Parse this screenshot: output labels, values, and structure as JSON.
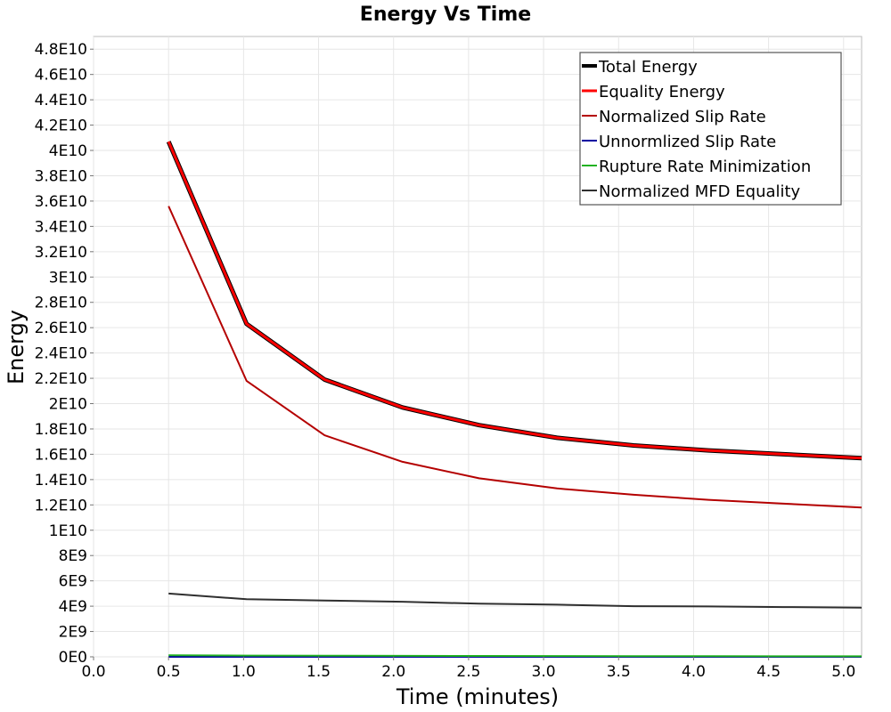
{
  "chart_data": {
    "type": "line",
    "title": "Energy Vs Time",
    "xlabel": "Time (minutes)",
    "ylabel": "Energy",
    "xlim": [
      0.0,
      5.12
    ],
    "ylim": [
      0,
      49000000000.0
    ],
    "x_ticks": [
      0.0,
      0.5,
      1.0,
      1.5,
      2.0,
      2.5,
      3.0,
      3.5,
      4.0,
      4.5,
      5.0
    ],
    "x_tick_labels": [
      "0.0",
      "0.5",
      "1.0",
      "1.5",
      "2.0",
      "2.5",
      "3.0",
      "3.5",
      "4.0",
      "4.5",
      "5.0"
    ],
    "y_ticks": [
      0,
      2000000000.0,
      4000000000.0,
      6000000000.0,
      8000000000.0,
      10000000000.0,
      12000000000.0,
      14000000000.0,
      16000000000.0,
      18000000000.0,
      20000000000.0,
      22000000000.0,
      24000000000.0,
      26000000000.0,
      28000000000.0,
      30000000000.0,
      32000000000.0,
      34000000000.0,
      36000000000.0,
      38000000000.0,
      40000000000.0,
      42000000000.0,
      44000000000.0,
      46000000000.0,
      48000000000.0
    ],
    "y_tick_labels": [
      "0E0",
      "2E9",
      "4E9",
      "6E9",
      "8E9",
      "1E10",
      "1.2E10",
      "1.4E10",
      "1.6E10",
      "1.8E10",
      "2E10",
      "2.2E10",
      "2.4E10",
      "2.6E10",
      "2.8E10",
      "3E10",
      "3.2E10",
      "3.4E10",
      "3.6E10",
      "3.8E10",
      "4E10",
      "4.2E10",
      "4.4E10",
      "4.6E10",
      "4.8E10"
    ],
    "grid": true,
    "legend_position": "top-right",
    "x": [
      0.5,
      1.02,
      1.54,
      2.06,
      2.57,
      3.09,
      3.6,
      4.1,
      4.6,
      5.12
    ],
    "series": [
      {
        "name": "Total Energy",
        "color": "#000000",
        "values": [
          40700000000.0,
          26300000000.0,
          21900000000.0,
          19700000000.0,
          18300000000.0,
          17300000000.0,
          16700000000.0,
          16300000000.0,
          16000000000.0,
          15700000000.0
        ]
      },
      {
        "name": "Equality Energy",
        "color": "#ff0000",
        "values": [
          40700000000.0,
          26300000000.0,
          21900000000.0,
          19700000000.0,
          18300000000.0,
          17300000000.0,
          16700000000.0,
          16300000000.0,
          16000000000.0,
          15700000000.0
        ]
      },
      {
        "name": "Normalized Slip Rate",
        "color": "#b40000",
        "values": [
          35600000000.0,
          21800000000.0,
          17500000000.0,
          15400000000.0,
          14100000000.0,
          13300000000.0,
          12800000000.0,
          12400000000.0,
          12100000000.0,
          11800000000.0
        ]
      },
      {
        "name": "Unnormlized Slip Rate",
        "color": "#0000a0",
        "values": [
          0,
          0,
          0,
          0,
          0,
          0,
          0,
          0,
          0,
          0
        ]
      },
      {
        "name": "Rupture Rate Minimization",
        "color": "#22b222",
        "values": [
          120000000.0,
          100000000.0,
          90000000.0,
          80000000.0,
          70000000.0,
          60000000.0,
          50000000.0,
          50000000.0,
          40000000.0,
          40000000.0
        ]
      },
      {
        "name": "Normalized MFD Equality",
        "color": "#2f2f2f",
        "values": [
          5000000000.0,
          4550000000.0,
          4450000000.0,
          4350000000.0,
          4200000000.0,
          4120000000.0,
          4000000000.0,
          3980000000.0,
          3930000000.0,
          3880000000.0
        ]
      }
    ]
  }
}
